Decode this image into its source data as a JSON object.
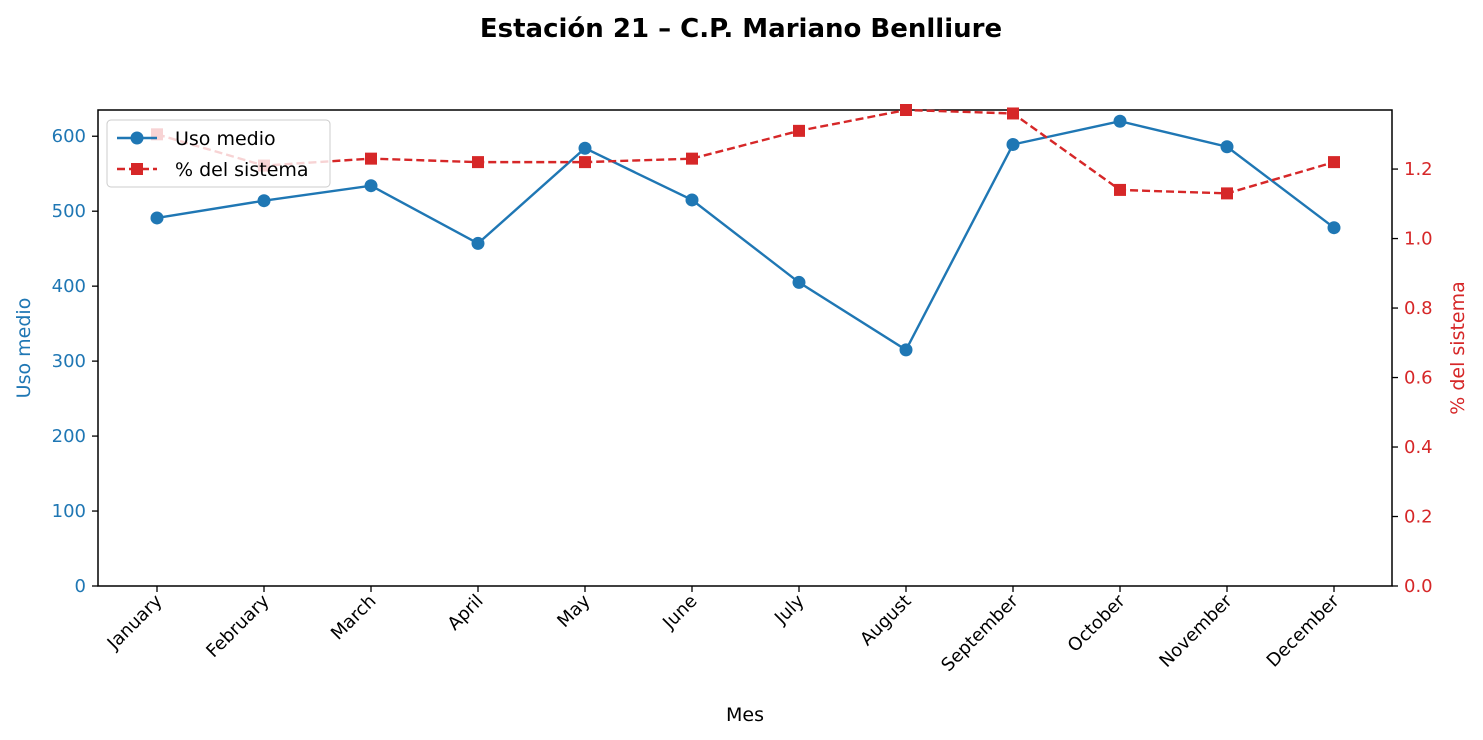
{
  "chart_data": {
    "type": "line",
    "title": "Estación 21 – C.P. Mariano Benlliure",
    "xlabel": "Mes",
    "categories": [
      "January",
      "February",
      "March",
      "April",
      "May",
      "June",
      "July",
      "August",
      "September",
      "October",
      "November",
      "December"
    ],
    "y_left": {
      "label": "Uso medio",
      "lim": [
        0,
        635
      ],
      "ticks": [
        0,
        100,
        200,
        300,
        400,
        500,
        600
      ],
      "color": "#1f77b4"
    },
    "y_right": {
      "label": "% del sistema",
      "lim": [
        0,
        1.37
      ],
      "ticks": [
        "0.0",
        "0.2",
        "0.4",
        "0.6",
        "0.8",
        "1.0",
        "1.2"
      ],
      "color": "#d62728"
    },
    "series": [
      {
        "name": "Uso medio",
        "axis": "left",
        "color": "#1f77b4",
        "linestyle": "solid",
        "marker": "circle",
        "values": [
          491,
          514,
          534,
          457,
          584,
          515,
          405,
          315,
          589,
          620,
          586,
          478
        ]
      },
      {
        "name": "% del sistema",
        "axis": "right",
        "color": "#d62728",
        "linestyle": "dashed",
        "marker": "square",
        "values": [
          1.3,
          1.21,
          1.23,
          1.22,
          1.22,
          1.23,
          1.31,
          1.37,
          1.36,
          1.14,
          1.13,
          1.22
        ]
      }
    ],
    "legend": "upper-left",
    "grid": false
  }
}
